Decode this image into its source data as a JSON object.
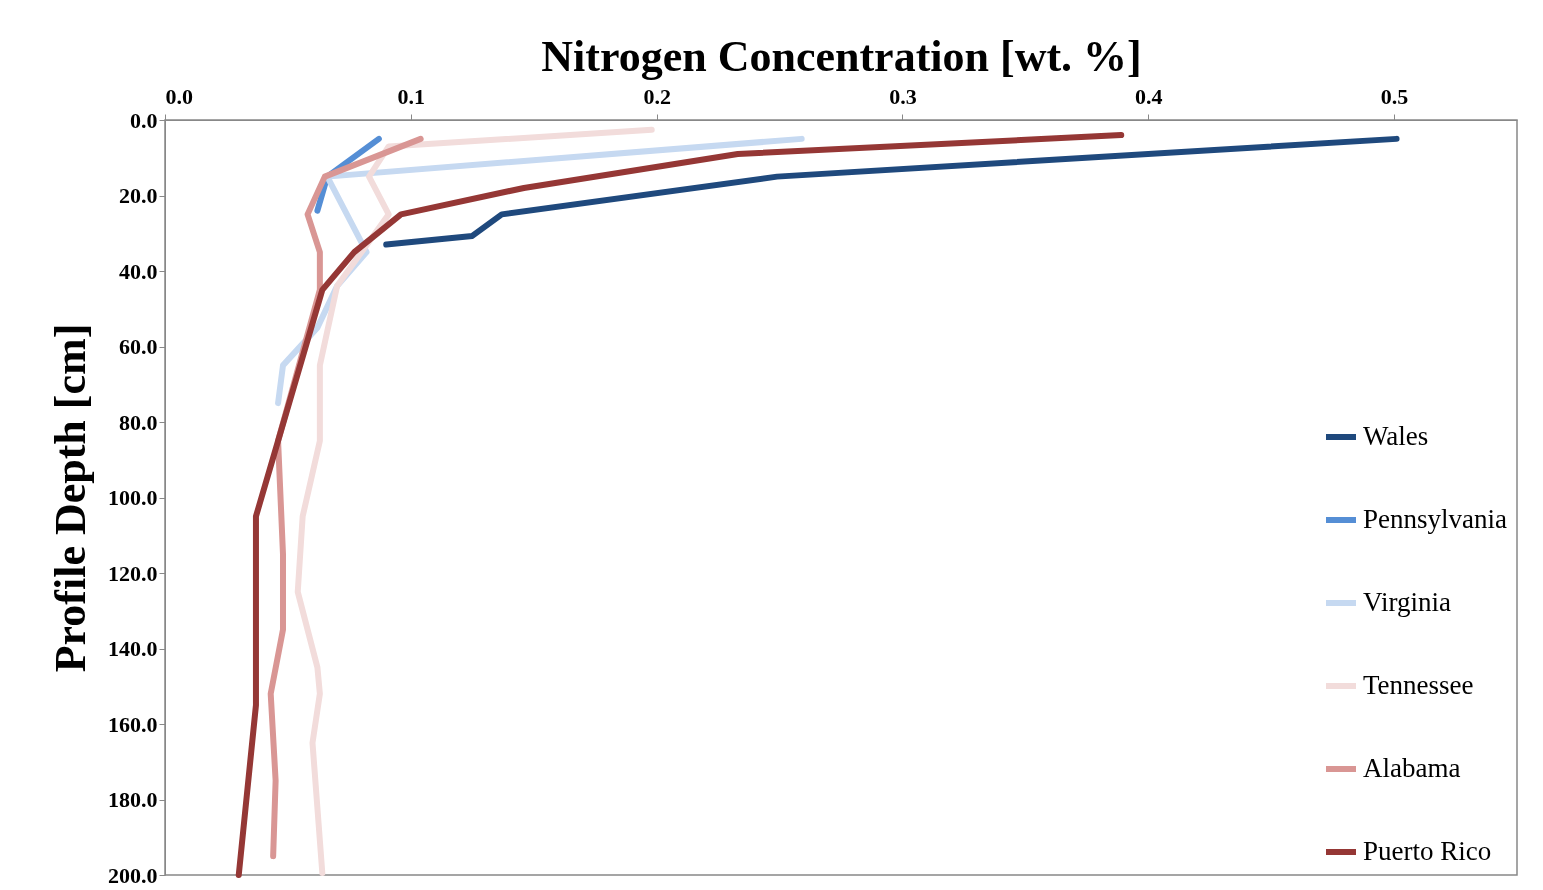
{
  "chart_data": {
    "type": "line",
    "xlabel": "Nitrogen Concentration [wt. %]",
    "ylabel": "Profile Depth [cm]",
    "xlim": [
      0,
      0.55
    ],
    "ylim": [
      200,
      0
    ],
    "xticks": [
      {
        "value": 0,
        "label": "0.0"
      },
      0.1,
      0.2,
      0.3,
      0.4,
      0.5
    ],
    "yticks": [
      {
        "value": 0,
        "label": "0.0"
      },
      {
        "value": 20,
        "label": "20.0"
      },
      {
        "value": 40,
        "label": "40.0"
      },
      {
        "value": 60,
        "label": "60.0"
      },
      {
        "value": 80,
        "label": "80.0"
      },
      {
        "value": 100,
        "label": "100.0"
      },
      {
        "value": 120,
        "label": "120.0"
      },
      {
        "value": 140,
        "label": "140.0"
      },
      {
        "value": 160,
        "label": "160.0"
      },
      {
        "value": 180,
        "label": "180.0"
      },
      {
        "value": 200,
        "label": "200.0"
      }
    ],
    "grid": false,
    "legend": "bottom right",
    "marker": "none",
    "line_style": "solid",
    "series": [
      {
        "name": "Wales",
        "color": "#1f497d",
        "x": [
          0.501,
          0.249,
          0.137,
          0.125,
          0.09
        ],
        "values": [
          5,
          15,
          25,
          30.7,
          33
        ]
      },
      {
        "name": "Pennsylvania",
        "color": "#558ed5",
        "x": [
          0.087,
          0.066,
          0.062
        ],
        "values": [
          5,
          15,
          24
        ]
      },
      {
        "name": "Virginia",
        "color": "#c6d9f1",
        "x": [
          0.259,
          0.066,
          0.082,
          0.07,
          0.062,
          0.048,
          0.046
        ],
        "values": [
          5,
          15,
          35,
          44,
          55,
          65,
          75
        ]
      },
      {
        "name": "Tennessee",
        "color": "#f2dcdb",
        "x": [
          0.198,
          0.091,
          0.083,
          0.091,
          0.07,
          0.063,
          0.063,
          0.056,
          0.054,
          0.062,
          0.063,
          0.06,
          0.064
        ],
        "values": [
          2.6,
          7,
          15,
          25,
          44,
          65,
          85,
          105,
          125,
          145,
          152,
          165,
          199.5
        ]
      },
      {
        "name": "Alabama",
        "color": "#d99694",
        "x": [
          0.104,
          0.065,
          0.058,
          0.063,
          0.063,
          0.046,
          0.048,
          0.048,
          0.043,
          0.045,
          0.044
        ],
        "values": [
          5,
          15,
          25,
          35,
          45,
          85,
          115,
          135,
          152,
          175,
          195
        ]
      },
      {
        "name": "Puerto Rico",
        "color": "#953735",
        "x": [
          0.389,
          0.233,
          0.146,
          0.096,
          0.077,
          0.064,
          0.037,
          0.037,
          0.03
        ],
        "values": [
          4,
          9,
          18,
          25,
          35,
          45,
          105,
          155,
          200
        ]
      }
    ]
  }
}
